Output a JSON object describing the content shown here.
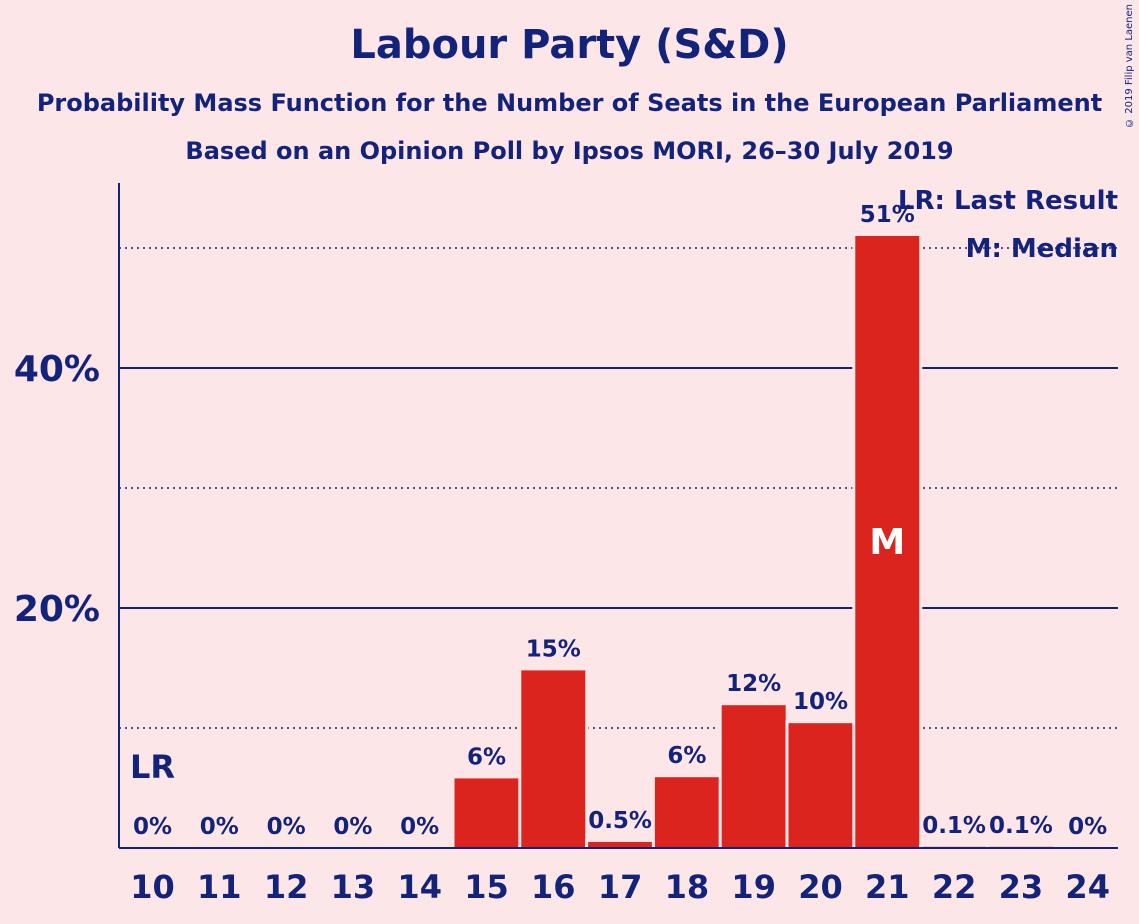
{
  "title": "Labour Party (S&D)",
  "subtitle1": "Probability Mass Function for the Number of Seats in the European Parliament",
  "subtitle2": "Based on an Opinion Poll by Ipsos MORI, 26–30 July 2019",
  "copyright": "© 2019 Filip van Laenen",
  "legend": {
    "last_result": "LR: Last Result",
    "median": "M: Median"
  },
  "colors": {
    "bar": "#dc241f",
    "text": "#14237a",
    "background": "#fde6e8"
  },
  "chart_data": {
    "type": "bar",
    "categories": [
      "10",
      "11",
      "12",
      "13",
      "14",
      "15",
      "16",
      "17",
      "18",
      "19",
      "20",
      "21",
      "22",
      "23",
      "24"
    ],
    "values": [
      0,
      0,
      0,
      0,
      0,
      5.8,
      14.8,
      0.5,
      5.9,
      11.9,
      10.4,
      51.0,
      0.1,
      0.1,
      0
    ],
    "value_labels": [
      "0%",
      "0%",
      "0%",
      "0%",
      "0%",
      "6%",
      "15%",
      "0.5%",
      "6%",
      "12%",
      "10%",
      "51%",
      "0.1%",
      "0.1%",
      "0%"
    ],
    "ylim": [
      0,
      55
    ],
    "yticks": [
      {
        "value": 20,
        "label": "20%"
      },
      {
        "value": 40,
        "label": "40%"
      }
    ],
    "minor_gridlines": [
      10,
      30,
      50
    ],
    "last_result": {
      "category": "10",
      "label": "LR"
    },
    "median": {
      "category": "21",
      "label": "M"
    },
    "legend_position": "top-right"
  }
}
